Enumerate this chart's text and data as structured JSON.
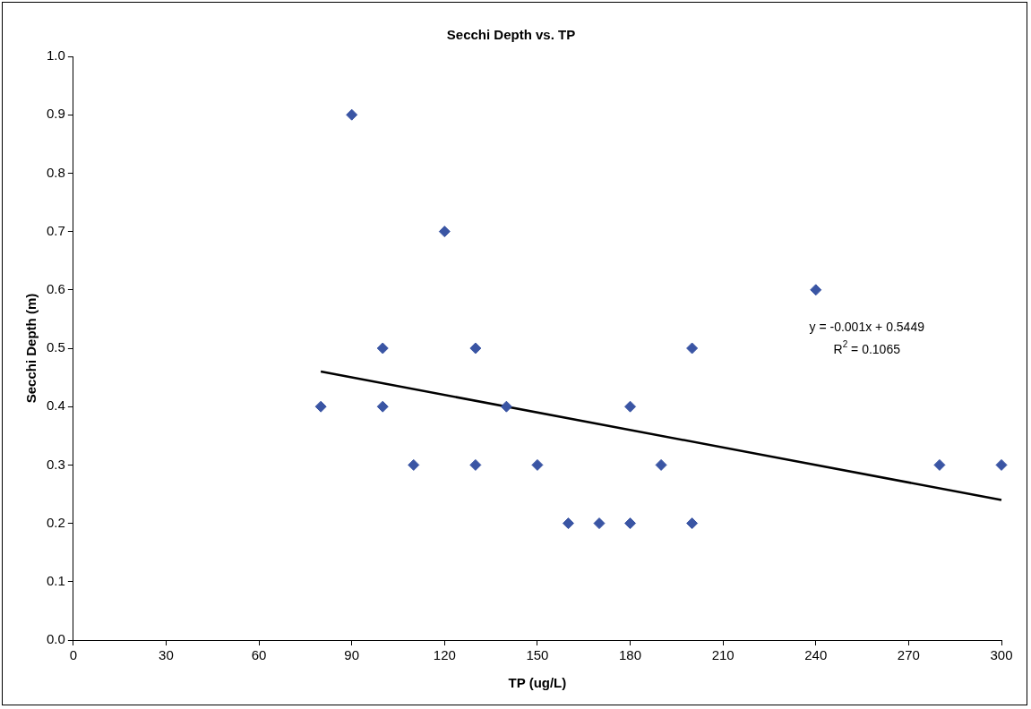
{
  "chart_data": {
    "type": "scatter",
    "title": "Secchi Depth vs. TP",
    "xlabel": "TP (ug/L)",
    "ylabel": "Secchi Depth (m)",
    "xlim": [
      0,
      300
    ],
    "xticks": [
      0,
      30,
      60,
      90,
      120,
      150,
      180,
      210,
      240,
      270,
      300
    ],
    "ylim": [
      0,
      1
    ],
    "yticks": [
      {
        "value": 0,
        "label": "0.0"
      },
      0.1,
      0.2,
      0.3,
      0.4,
      0.5,
      0.6,
      0.7,
      0.8,
      0.9,
      {
        "value": 1,
        "label": "1.0"
      }
    ],
    "grid": false,
    "legend": false,
    "marker": "diamond",
    "series": [
      {
        "color": "#3a55a4",
        "x": [
          80,
          90,
          100,
          100,
          110,
          120,
          130,
          130,
          140,
          150,
          160,
          170,
          180,
          180,
          190,
          200,
          200,
          240,
          280,
          300
        ],
        "values": [
          0.4,
          0.9,
          0.5,
          0.4,
          0.3,
          0.7,
          0.5,
          0.3,
          0.4,
          0.3,
          0.2,
          0.2,
          0.2,
          0.4,
          0.3,
          0.5,
          0.2,
          0.6,
          0.3,
          0.3
        ]
      },
      {
        "type": "line",
        "marker": "none",
        "color": "#000000",
        "x": [
          80,
          300
        ],
        "values": [
          0.46,
          0.24
        ]
      }
    ],
    "annotations": [
      "y = -0.001x + 0.5449",
      "R$^{2}$ = 0.1065"
    ]
  }
}
